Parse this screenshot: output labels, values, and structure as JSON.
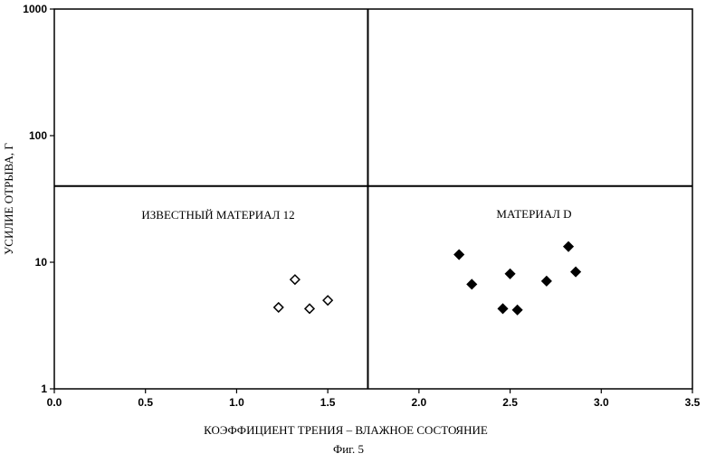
{
  "chart_data": {
    "type": "scatter",
    "xlabel": "КОЭФФИЦИЕНТ ТРЕНИЯ – ВЛАЖНОЕ СОСТОЯНИЕ",
    "ylabel": "УСИЛИЕ ОТРЫВА, Г",
    "caption": "Фиг. 5",
    "xlim": [
      0.0,
      3.5
    ],
    "ylim": [
      1,
      1000
    ],
    "yscale": "log",
    "x_ticks": [
      "0.0",
      "0.5",
      "1.0",
      "1.5",
      "2.0",
      "2.5",
      "3.0",
      "3.5"
    ],
    "y_ticks": [
      "1",
      "10",
      "100",
      "1000"
    ],
    "grid": false,
    "divider_lines": {
      "x": 1.72,
      "y": 40
    },
    "annotations": [
      "ИЗВЕСТНЫЙ МАТЕРИАЛ 12",
      "МАТЕРИАЛ D"
    ],
    "series": [
      {
        "name": "ИЗВЕСТНЫЙ МАТЕРИАЛ 12",
        "marker": "diamond-open",
        "x": [
          1.23,
          1.32,
          1.4,
          1.5
        ],
        "y": [
          4.4,
          7.3,
          4.3,
          5.0
        ]
      },
      {
        "name": "МАТЕРИАЛ D",
        "marker": "diamond-filled",
        "x": [
          2.22,
          2.29,
          2.46,
          2.5,
          2.54,
          2.7,
          2.82,
          2.86
        ],
        "y": [
          11.5,
          6.7,
          4.3,
          8.1,
          4.2,
          7.1,
          13.3,
          8.4
        ]
      }
    ]
  }
}
